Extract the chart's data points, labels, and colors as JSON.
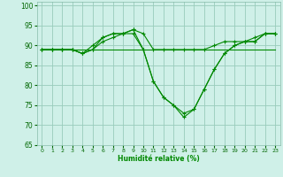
{
  "xlabel": "Humidité relative (%)",
  "xlim": [
    -0.5,
    23.5
  ],
  "ylim": [
    65,
    101
  ],
  "yticks": [
    65,
    70,
    75,
    80,
    85,
    90,
    95,
    100
  ],
  "xticks": [
    0,
    1,
    2,
    3,
    4,
    5,
    6,
    7,
    8,
    9,
    10,
    11,
    12,
    13,
    14,
    15,
    16,
    17,
    18,
    19,
    20,
    21,
    22,
    23
  ],
  "bg_color": "#cff0e8",
  "grid_color": "#99ccbb",
  "line_color": "#008800",
  "lines": [
    {
      "x": [
        0,
        1,
        2,
        3,
        4,
        5,
        6,
        7,
        8,
        9,
        10,
        11,
        12,
        13,
        14,
        15,
        16,
        17,
        18,
        19,
        20,
        21,
        22,
        23
      ],
      "y": [
        89,
        89,
        89,
        89,
        89,
        89,
        89,
        89,
        89,
        89,
        89,
        89,
        89,
        89,
        89,
        89,
        89,
        89,
        89,
        89,
        89,
        89,
        89,
        89
      ],
      "has_markers": false
    },
    {
      "x": [
        0,
        1,
        2,
        3,
        4,
        5,
        6,
        7,
        8,
        9,
        10,
        11,
        12,
        13,
        14,
        15,
        16,
        17,
        18,
        19,
        20,
        21,
        22,
        23
      ],
      "y": [
        89,
        89,
        89,
        89,
        88,
        89,
        91,
        92,
        93,
        94,
        93,
        89,
        89,
        89,
        89,
        89,
        89,
        90,
        91,
        91,
        91,
        92,
        93,
        93
      ],
      "has_markers": true
    },
    {
      "x": [
        0,
        1,
        2,
        3,
        4,
        5,
        6,
        7,
        8,
        9,
        10,
        11,
        12,
        13,
        14,
        15,
        16,
        17,
        18,
        19,
        20,
        21,
        22,
        23
      ],
      "y": [
        89,
        89,
        89,
        89,
        88,
        89,
        92,
        93,
        93,
        94,
        89,
        81,
        77,
        75,
        73,
        74,
        79,
        84,
        88,
        90,
        91,
        91,
        93,
        93
      ],
      "has_markers": true
    },
    {
      "x": [
        0,
        1,
        2,
        3,
        4,
        5,
        6,
        7,
        8,
        9,
        10,
        11,
        12,
        13,
        14,
        15,
        16,
        17,
        18,
        19,
        20,
        21,
        22,
        23
      ],
      "y": [
        89,
        89,
        89,
        89,
        88,
        90,
        92,
        93,
        93,
        93,
        89,
        81,
        77,
        75,
        72,
        74,
        79,
        84,
        88,
        90,
        91,
        91,
        93,
        93
      ],
      "has_markers": true
    }
  ]
}
